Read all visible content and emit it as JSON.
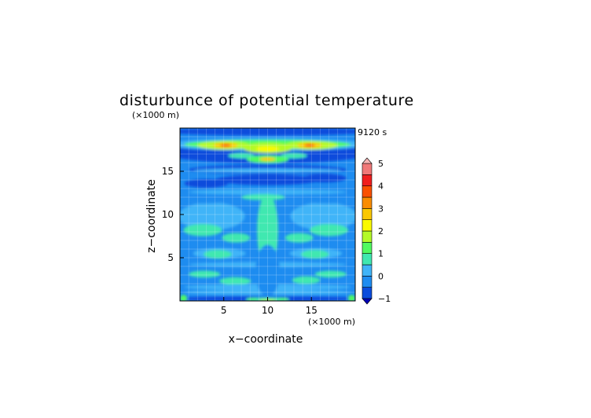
{
  "chart_data": {
    "type": "heatmap",
    "title": "disturbunce of potential temperature",
    "xlabel": "x−coordinate",
    "ylabel": "z−coordinate",
    "x_unit": "(×1000 m)",
    "y_unit": "(×1000 m)",
    "time_label": "9120 s",
    "xlim": [
      0,
      20
    ],
    "ylim": [
      0,
      20
    ],
    "x_ticks": [
      5,
      10,
      15
    ],
    "y_ticks": [
      5,
      10,
      15
    ],
    "grid": true,
    "colorbar": {
      "ticks": [
        -1,
        0,
        1,
        2,
        3,
        4,
        5
      ],
      "levels": [
        -1,
        -0.5,
        0,
        0.5,
        1,
        1.5,
        2,
        2.5,
        3,
        3.5,
        4,
        4.5,
        5
      ],
      "colors": [
        "#0000b4",
        "#0a4cdc",
        "#1e8cf0",
        "#40b4f8",
        "#40e8b0",
        "#50fa60",
        "#b4fa28",
        "#fafa00",
        "#fac800",
        "#fa8c00",
        "#fa5000",
        "#f01e1e",
        "#f07878",
        "#f8b4b4"
      ]
    },
    "features": [
      {
        "x": 10,
        "z": 18.0,
        "value": 3.5
      },
      {
        "x": 5.2,
        "z": 18.0,
        "value": 3.5
      },
      {
        "x": 14.8,
        "z": 18.0,
        "value": 3.5
      },
      {
        "x": 10,
        "z": 16.4,
        "value": 2.5
      },
      {
        "x": 10,
        "z": 13.7,
        "value": -0.8
      },
      {
        "x": 10,
        "z": 0.1,
        "value": 1.5
      }
    ]
  }
}
